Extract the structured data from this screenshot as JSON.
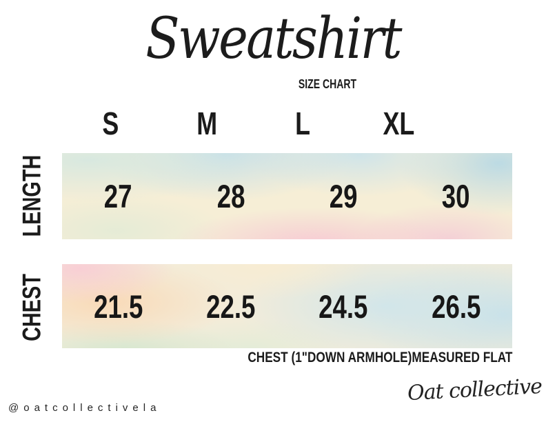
{
  "brand": {
    "title_script": "Sweatshirt",
    "subtitle": "SIZE CHART",
    "handle": "@oatcollectivela",
    "signature": "Oat collective"
  },
  "size_chart": {
    "size_headers": [
      "S",
      "M",
      "L",
      "XL"
    ],
    "rows": [
      {
        "label": "LENGTH",
        "values": [
          "27",
          "28",
          "29",
          "30"
        ]
      },
      {
        "label": "CHEST",
        "values": [
          "21.5",
          "22.5",
          "24.5",
          "26.5"
        ]
      }
    ],
    "note": "CHEST (1\"DOWN ARMHOLE)MEASURED FLAT"
  },
  "chart_data": {
    "type": "table",
    "title": "Sweatshirt SIZE CHART",
    "categories": [
      "S",
      "M",
      "L",
      "XL"
    ],
    "series": [
      {
        "name": "LENGTH",
        "values": [
          27,
          28,
          29,
          30
        ]
      },
      {
        "name": "CHEST",
        "values": [
          21.5,
          22.5,
          24.5,
          26.5
        ]
      }
    ],
    "note": "CHEST (1\"DOWN ARMHOLE)MEASURED FLAT"
  },
  "colors": {
    "ink": "#1b1b1b",
    "watercolor_blue": "#c9e3ec",
    "watercolor_cream": "#f6edd3",
    "watercolor_peach": "#fadfc2",
    "watercolor_pink": "#f8cfd6",
    "watercolor_mint": "#d8e8d6"
  }
}
